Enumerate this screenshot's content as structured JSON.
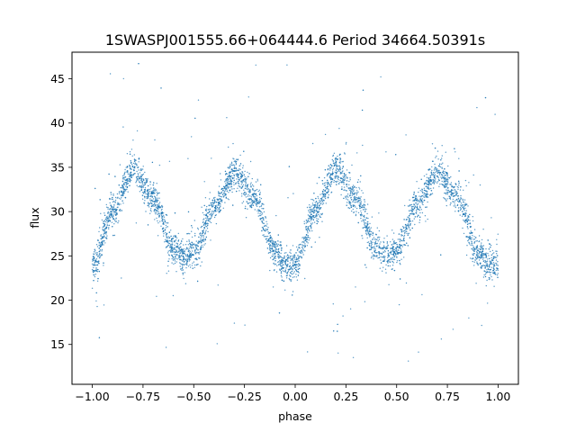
{
  "chart_data": {
    "type": "scatter",
    "title": "1SWASPJ001555.66+064444.6 Period 34664.50391s",
    "xlabel": "phase",
    "ylabel": "flux",
    "xlim": [
      -1.1,
      1.1
    ],
    "ylim": [
      10.5,
      48.0
    ],
    "xticks": [
      -1.0,
      -0.75,
      -0.5,
      -0.25,
      0.0,
      0.25,
      0.5,
      0.75,
      1.0
    ],
    "xtick_labels": [
      "−1.00",
      "−0.75",
      "−0.50",
      "−0.25",
      "0.00",
      "0.25",
      "0.50",
      "0.75",
      "1.00"
    ],
    "yticks": [
      15,
      20,
      25,
      30,
      35,
      40,
      45
    ],
    "ytick_labels": [
      "15",
      "20",
      "25",
      "30",
      "35",
      "40",
      "45"
    ],
    "grid": false,
    "series": [
      {
        "color": "#1f77b4",
        "profile": {
          "x": [
            -1.0,
            -0.9,
            -0.8,
            -0.7,
            -0.6,
            -0.55,
            -0.5,
            -0.4,
            -0.3,
            -0.2,
            -0.1,
            -0.05,
            0.0,
            0.1,
            0.2,
            0.3,
            0.4,
            0.45,
            0.5,
            0.6,
            0.7,
            0.8,
            0.9,
            0.95,
            1.0
          ],
          "y": [
            23.8,
            30.0,
            34.8,
            31.5,
            26.0,
            25.0,
            25.5,
            30.5,
            34.5,
            31.5,
            25.5,
            24.0,
            23.8,
            30.0,
            34.8,
            31.5,
            26.0,
            25.0,
            25.5,
            30.5,
            34.5,
            31.5,
            25.5,
            24.0,
            23.8
          ]
        },
        "scatter_sd": 0.9,
        "outlier_range": [
          12.5,
          47.5
        ]
      }
    ]
  }
}
